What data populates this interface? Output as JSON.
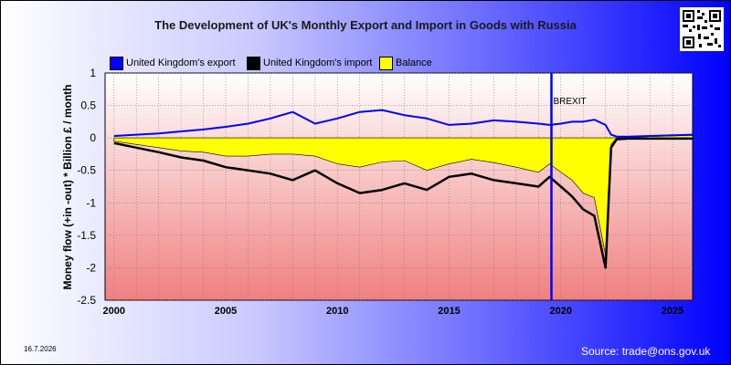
{
  "chart_data": {
    "type": "line",
    "title": "The Development of UK's Monthly Export and Import in Goods with Russia",
    "ylabel": "Money flow (+in -out) * Billion £ / month",
    "xlabel": "",
    "xlim": [
      1999.6,
      2025.9
    ],
    "ylim": [
      -2.5,
      1
    ],
    "x_ticks": [
      2000,
      2005,
      2010,
      2015,
      2020,
      2025
    ],
    "y_ticks": [
      1,
      0.5,
      0,
      -0.5,
      -1,
      -1.5,
      -2,
      -2.5
    ],
    "x_tick_labels": [
      "2000",
      "2005",
      "2010",
      "2015",
      "2020",
      "2025"
    ],
    "y_tick_labels": [
      "1",
      "0.5",
      "0",
      "-0.5",
      "-1",
      "-1.5",
      "-2",
      "-2.5"
    ],
    "grid": true,
    "legend_position": "top",
    "annotations": [
      {
        "x": 2019.58,
        "label": "BREXIT"
      }
    ],
    "x": [
      2000,
      2001,
      2002,
      2003,
      2004,
      2005,
      2006,
      2007,
      2008,
      2009,
      2010,
      2011,
      2012,
      2013,
      2014,
      2015,
      2016,
      2017,
      2018,
      2019,
      2019.5,
      2020,
      2020.5,
      2021,
      2021.5,
      2022,
      2022.25,
      2022.5,
      2023,
      2024,
      2025,
      2025.9
    ],
    "series": [
      {
        "name": "United Kingdom's export",
        "color": "#0000ff",
        "values": [
          0.03,
          0.05,
          0.07,
          0.1,
          0.13,
          0.17,
          0.22,
          0.3,
          0.4,
          0.22,
          0.3,
          0.4,
          0.43,
          0.35,
          0.3,
          0.2,
          0.22,
          0.27,
          0.25,
          0.22,
          0.2,
          0.22,
          0.25,
          0.25,
          0.28,
          0.2,
          0.05,
          0.02,
          0.02,
          0.03,
          0.04,
          0.05
        ]
      },
      {
        "name": "United Kingdom's import",
        "color": "#000000",
        "values": [
          -0.08,
          -0.15,
          -0.22,
          -0.3,
          -0.35,
          -0.45,
          -0.5,
          -0.55,
          -0.65,
          -0.5,
          -0.7,
          -0.85,
          -0.8,
          -0.7,
          -0.8,
          -0.6,
          -0.55,
          -0.65,
          -0.7,
          -0.75,
          -0.6,
          -0.75,
          -0.9,
          -1.1,
          -1.2,
          -2.0,
          -0.15,
          -0.02,
          -0.01,
          -0.01,
          -0.01,
          -0.01
        ]
      },
      {
        "name": "Balance",
        "color": "#ffff00",
        "values": [
          -0.05,
          -0.1,
          -0.15,
          -0.2,
          -0.22,
          -0.28,
          -0.28,
          -0.25,
          -0.25,
          -0.28,
          -0.4,
          -0.45,
          -0.37,
          -0.35,
          -0.5,
          -0.4,
          -0.33,
          -0.38,
          -0.45,
          -0.53,
          -0.4,
          -0.53,
          -0.65,
          -0.85,
          -0.92,
          -1.8,
          -0.1,
          0,
          0.01,
          0.02,
          0.03,
          0.04
        ]
      }
    ]
  },
  "date_stamp": "16.7.2026",
  "source": "Source: trade@ons.gov.uk",
  "qr_icon": "qr-code-icon"
}
